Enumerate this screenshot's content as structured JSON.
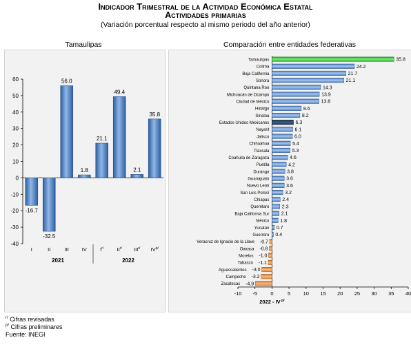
{
  "header": {
    "title": "Indicador Trimestral de la Actividad Económica Estatal",
    "subtitle": "Actividades primarias",
    "note": "(Variación porcentual respecto al mismo periodo del año anterior)"
  },
  "footnotes": {
    "revised_mark": "r/",
    "revised": "Cifras revisadas",
    "preliminary_mark": "p/",
    "preliminary": "Cifras preliminares",
    "source": "Fuente: INEGI"
  },
  "colors": {
    "bar_blue": "#4a7fc4",
    "highlight_green": "#2fc22f",
    "national_navy": "#1f3a5f",
    "negative_orange": "#e88b3a",
    "light_blue": "#7fa8dc"
  },
  "chart_data": [
    {
      "type": "bar",
      "title": "Tamaulipas",
      "categories": [
        "I",
        "II",
        "III",
        "IV",
        "I",
        "II",
        "III",
        "IV"
      ],
      "category_marks": [
        "",
        "",
        "",
        "",
        "r/",
        "r/",
        "r/",
        "p/"
      ],
      "groups": [
        {
          "label": "2021",
          "span": [
            0,
            3
          ]
        },
        {
          "label": "2022",
          "span": [
            4,
            7
          ]
        }
      ],
      "values": [
        -16.7,
        -32.5,
        56.0,
        1.8,
        21.1,
        49.4,
        2.1,
        35.8
      ],
      "value_labels": [
        "-16.7",
        "-32.5",
        "56.0",
        "1.8",
        "21.1",
        "49.4",
        "2.1",
        "35.8"
      ],
      "ylim": [
        -40,
        60
      ],
      "yticks": [
        -40,
        -30,
        -20,
        -10,
        0,
        10,
        20,
        30,
        40,
        50,
        60
      ],
      "ytick_labels": [
        "-40",
        "-30",
        "-20",
        "-10",
        "0",
        "10",
        "20",
        "30",
        "40",
        "50",
        "60"
      ],
      "grid": false
    },
    {
      "type": "bar",
      "orientation": "horizontal",
      "title": "Comparación entre entidades federativas",
      "xlabel": "2022 - IV",
      "xlabel_mark": "p/",
      "categories": [
        "Tamaulipas",
        "Colima",
        "Baja California",
        "Sonora",
        "Quintana Roo",
        "Michoacán de Ocampo",
        "Ciudad de México",
        "Hidalgo",
        "Sinaloa",
        "Estados Unidos Mexicanos",
        "Nayarit",
        "Jalisco",
        "Chihuahua",
        "Tlaxcala",
        "Coahuila de Zaragoza",
        "Puebla",
        "Durango",
        "Guanajuato",
        "Nuevo León",
        "San Luis Potosí",
        "Chiapas",
        "Querétaro",
        "Baja California Sur",
        "México",
        "Yucatán",
        "Guerrero",
        "Veracruz de Ignacio de la Llave",
        "Oaxaca",
        "Morelos",
        "Tabasco",
        "Aguascalientes",
        "Campeche",
        "Zacatecas"
      ],
      "values": [
        35.8,
        24.2,
        21.7,
        21.1,
        14.3,
        13.9,
        13.8,
        8.6,
        8.2,
        6.3,
        6.1,
        6.0,
        5.4,
        5.3,
        4.6,
        4.2,
        3.8,
        3.6,
        3.6,
        3.2,
        2.4,
        2.3,
        2.1,
        1.8,
        0.7,
        0.4,
        -0.7,
        -0.8,
        -1.0,
        -1.1,
        -3.0,
        -3.2,
        -4.9
      ],
      "value_labels": [
        "35.8",
        "24.2",
        "21.7",
        "21.1",
        "14.3",
        "13.9",
        "13.8",
        "8.6",
        "8.2",
        "6.3",
        "6.1",
        "6.0",
        "5.4",
        "5.3",
        "4.6",
        "4.2",
        "3.8",
        "3.6",
        "3.6",
        "3.2",
        "2.4",
        "2.3",
        "2.1",
        "1.8",
        "0.7",
        "0.4",
        "-0.7",
        "-0.8",
        "-1.0",
        "-1.1",
        "-3.0",
        "-3.2",
        "-4.9"
      ],
      "xlim": [
        -10,
        40
      ],
      "xticks": [
        -10,
        -5,
        0,
        5,
        10,
        15,
        20,
        25,
        30,
        35,
        40
      ],
      "xtick_labels": [
        "-10",
        "-5",
        "0",
        "5",
        "10",
        "15",
        "20",
        "25",
        "30",
        "35",
        "40"
      ],
      "highlight": {
        "Tamaulipas": "green",
        "Estados Unidos Mexicanos": "navy"
      },
      "grid": false
    }
  ]
}
